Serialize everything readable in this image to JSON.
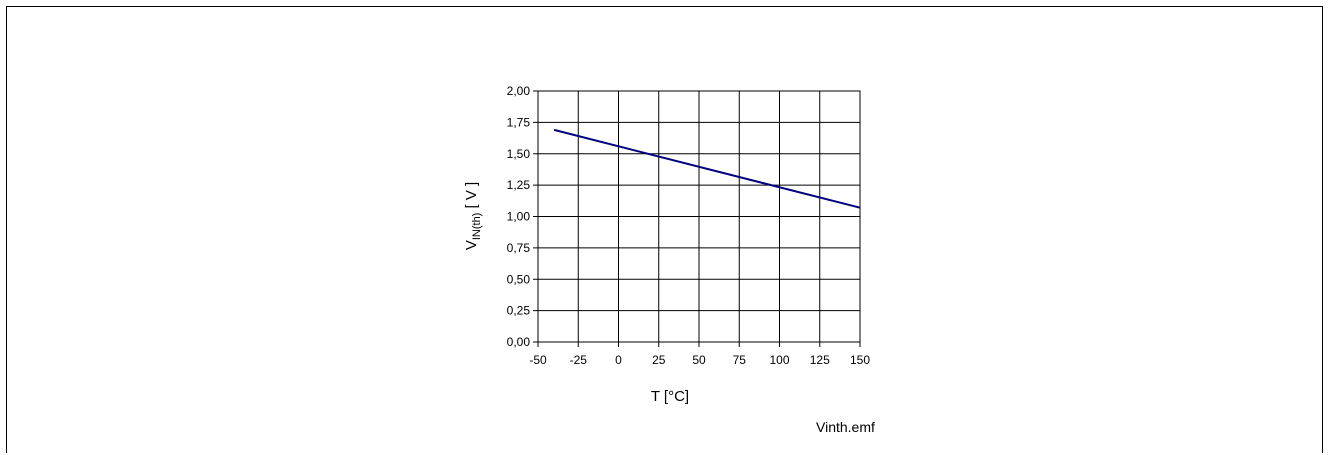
{
  "chart_data": {
    "type": "line",
    "xlabel": "T [°C]",
    "ylabel_main": "V",
    "ylabel_sub": "IN(th)",
    "ylabel_unit": " [ V ]",
    "x_ticks": [
      "-50",
      "-25",
      "0",
      "25",
      "50",
      "75",
      "100",
      "125",
      "150"
    ],
    "y_ticks": [
      "0,00",
      "0,25",
      "0,50",
      "0,75",
      "1,00",
      "1,25",
      "1,50",
      "1,75",
      "2,00"
    ],
    "xlim": [
      -50,
      150
    ],
    "ylim": [
      0,
      2
    ],
    "grid": true,
    "series": [
      {
        "x": [
          -40,
          150
        ],
        "y": [
          1.69,
          1.07
        ]
      }
    ],
    "colors": {
      "line": "#000080",
      "grid": "#000000"
    }
  },
  "caption": "Vinth.emf"
}
